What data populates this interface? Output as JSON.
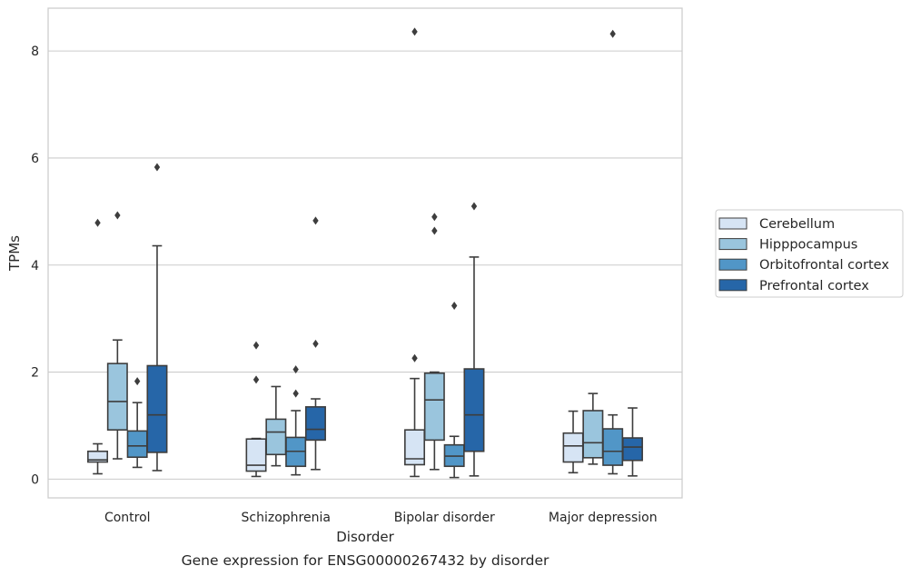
{
  "chart_data": {
    "type": "box",
    "xlabel": "Disorder",
    "ylabel": "TPMs",
    "caption": "Gene expression for ENSG00000267432 by disorder",
    "ylim": [
      -0.35,
      8.8
    ],
    "yticks": [
      "0",
      "2",
      "4",
      "6",
      "8"
    ],
    "grid": "horizontal",
    "legend_position": "right",
    "categories": [
      "Control",
      "Schizophrenia",
      "Bipolar disorder",
      "Major depression"
    ],
    "series": [
      {
        "name": "Cerebellum",
        "color": "#d6e4f4",
        "boxes": [
          {
            "whislo": 0.1,
            "q1": 0.32,
            "med": 0.36,
            "q3": 0.52,
            "whishi": 0.66,
            "fliers": [
              4.79
            ]
          },
          {
            "whislo": 0.05,
            "q1": 0.15,
            "med": 0.26,
            "q3": 0.75,
            "whishi": 0.76,
            "fliers": [
              1.86,
              2.5
            ]
          },
          {
            "whislo": 0.05,
            "q1": 0.27,
            "med": 0.38,
            "q3": 0.92,
            "whishi": 1.88,
            "fliers": [
              2.26,
              8.36
            ]
          },
          {
            "whislo": 0.12,
            "q1": 0.32,
            "med": 0.62,
            "q3": 0.86,
            "whishi": 1.27,
            "fliers": []
          }
        ]
      },
      {
        "name": "Hipppocampus",
        "color": "#9ac5dd",
        "boxes": [
          {
            "whislo": 0.38,
            "q1": 0.92,
            "med": 1.45,
            "q3": 2.16,
            "whishi": 2.6,
            "fliers": [
              4.93
            ]
          },
          {
            "whislo": 0.25,
            "q1": 0.46,
            "med": 0.88,
            "q3": 1.12,
            "whishi": 1.73,
            "fliers": []
          },
          {
            "whislo": 0.18,
            "q1": 0.73,
            "med": 1.48,
            "q3": 1.98,
            "whishi": 2.0,
            "fliers": [
              4.64,
              4.9
            ]
          },
          {
            "whislo": 0.28,
            "q1": 0.4,
            "med": 0.68,
            "q3": 1.28,
            "whishi": 1.6,
            "fliers": []
          }
        ]
      },
      {
        "name": "Orbitofrontal cortex",
        "color": "#5196c7",
        "boxes": [
          {
            "whislo": 0.22,
            "q1": 0.41,
            "med": 0.62,
            "q3": 0.9,
            "whishi": 1.43,
            "fliers": [
              1.83
            ]
          },
          {
            "whislo": 0.08,
            "q1": 0.24,
            "med": 0.52,
            "q3": 0.78,
            "whishi": 1.28,
            "fliers": [
              1.6,
              2.05
            ]
          },
          {
            "whislo": 0.03,
            "q1": 0.24,
            "med": 0.43,
            "q3": 0.64,
            "whishi": 0.8,
            "fliers": [
              3.24
            ]
          },
          {
            "whislo": 0.1,
            "q1": 0.26,
            "med": 0.52,
            "q3": 0.94,
            "whishi": 1.2,
            "fliers": [
              8.32
            ]
          }
        ]
      },
      {
        "name": "Prefrontal cortex",
        "color": "#2666a8",
        "boxes": [
          {
            "whislo": 0.16,
            "q1": 0.5,
            "med": 1.2,
            "q3": 2.12,
            "whishi": 4.36,
            "fliers": [
              5.83
            ]
          },
          {
            "whislo": 0.18,
            "q1": 0.73,
            "med": 0.93,
            "q3": 1.35,
            "whishi": 1.5,
            "fliers": [
              2.53,
              4.83
            ]
          },
          {
            "whislo": 0.06,
            "q1": 0.52,
            "med": 1.2,
            "q3": 2.06,
            "whishi": 4.15,
            "fliers": [
              5.1
            ]
          },
          {
            "whislo": 0.06,
            "q1": 0.35,
            "med": 0.6,
            "q3": 0.77,
            "whishi": 1.33,
            "fliers": []
          }
        ]
      }
    ]
  }
}
